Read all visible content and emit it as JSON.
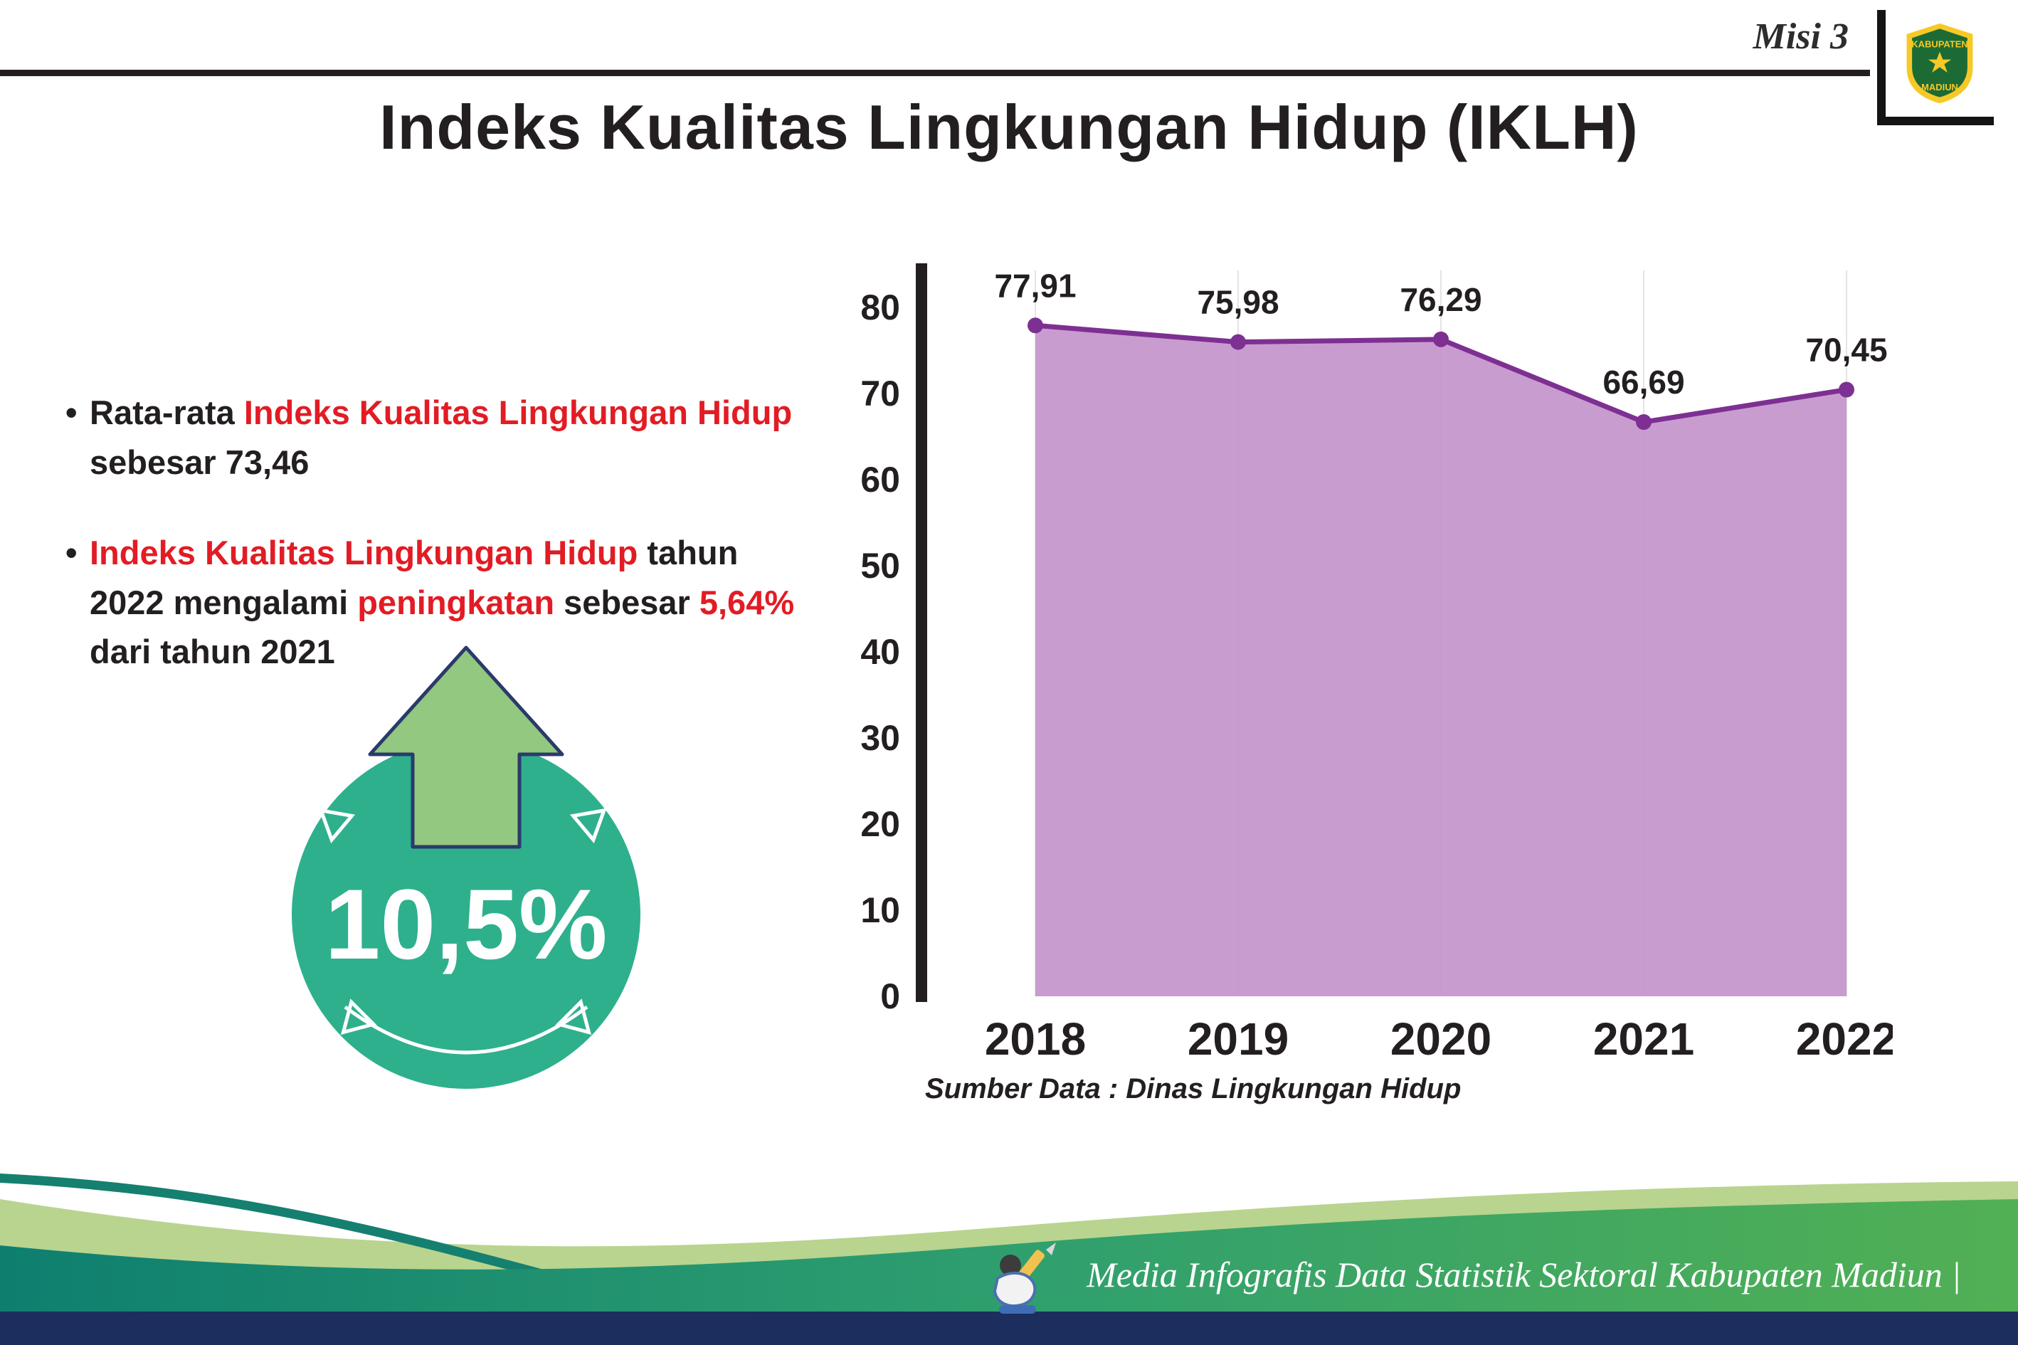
{
  "header": {
    "misi": "Misi 3",
    "title": "Indeks Kualitas Lingkungan Hidup (IKLH)"
  },
  "logo": {
    "top_text": "KABUPATEN",
    "bottom_text": "MADIUN"
  },
  "bullets": {
    "bullet_char": "•",
    "b1": [
      {
        "text": "Rata-rata ",
        "red": false
      },
      {
        "text": "Indeks Kualitas Lingkungan Hidup",
        "red": true
      },
      {
        "text": " sebesar 73,46",
        "red": false
      }
    ],
    "b2": [
      {
        "text": "Indeks Kualitas Lingkungan Hidup",
        "red": true
      },
      {
        "text": " tahun 2022 mengalami ",
        "red": false
      },
      {
        "text": "peningkatan",
        "red": true
      },
      {
        "text": " sebesar ",
        "red": false
      },
      {
        "text": "5,64%",
        "red": true
      },
      {
        "text": " dari tahun 2021",
        "red": false
      }
    ]
  },
  "badge": {
    "value": "10,5%"
  },
  "chart": {
    "source": "Sumber Data : Dinas Lingkungan Hidup"
  },
  "footer": {
    "credit": "Media Infografis Data Statistik Sektoral Kabupaten Madiun |"
  },
  "colors": {
    "red_text": "#e21c24",
    "ink": "#231f20",
    "badge_teal": "#2eb08d",
    "arrow_green": "#92c87f",
    "arrow_outline": "#2b3a6b",
    "footer_teal": "#0e7f6f",
    "footer_green": "#52b054",
    "pale_green": "#b9d48e",
    "bottom_navy": "#1c2e5e"
  },
  "chart_data": {
    "type": "area",
    "title": "",
    "xlabel": "",
    "ylabel": "",
    "categories": [
      "2018",
      "2019",
      "2020",
      "2021",
      "2022"
    ],
    "values": [
      77.91,
      75.98,
      76.29,
      66.69,
      70.45
    ],
    "value_labels": [
      "77,91",
      "75,98",
      "76,29",
      "66,69",
      "70,45"
    ],
    "ylim": [
      0,
      85
    ],
    "yticks": [
      0,
      10,
      20,
      30,
      40,
      50,
      60,
      70,
      80
    ],
    "grid": "vertical-light",
    "legend": "none",
    "line_color": "#7d3092",
    "marker_color": "#7d3092",
    "fill_color": "#c494cc",
    "label_color": "#231f20"
  }
}
